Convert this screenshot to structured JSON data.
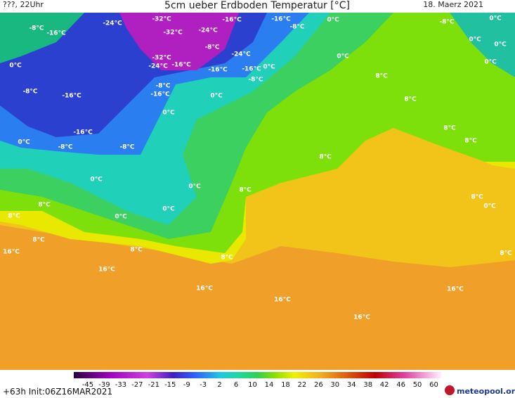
{
  "header": {
    "left": "???, 22Uhr",
    "title": "5cm ueber Erdboden Temperatur [°C]",
    "date": "18. Maerz 2021"
  },
  "labels": [
    "-8°C",
    "-16°C",
    "-24°C",
    "-32°C",
    "-32°C",
    "-24°C",
    "-16°C",
    "-16°C",
    "-8°C",
    "0°C",
    "0°C",
    "-8°C",
    "0°C",
    "0°C",
    "-8°C",
    "-24°C",
    "-32°C",
    "-24°C",
    "-16°C",
    "-16°C",
    "-16°C",
    "0°C",
    "-8°C",
    "0°C",
    "0°C",
    "0°C",
    "-8°C",
    "-16°C",
    "-8°C",
    "-16°C",
    "0°C",
    "8°C",
    "8°C",
    "0°C",
    "8°C",
    "-16°C",
    "0°C",
    "-8°C",
    "-8°C",
    "8°C",
    "8°C",
    "0°C",
    "0°C",
    "8°C",
    "8°C",
    "0°C",
    "8°C",
    "0°C",
    "8°C",
    "0°C",
    "8°C",
    "16°C",
    "8°C",
    "8°C",
    "8°C",
    "16°C",
    "16°C",
    "16°C",
    "16°C",
    "16°C"
  ],
  "colorbar": {
    "ticks": [
      -45,
      -39,
      -33,
      -27,
      -21,
      -15,
      -9,
      -3,
      2,
      6,
      10,
      14,
      18,
      22,
      26,
      30,
      34,
      38,
      42,
      46,
      50,
      60
    ]
  },
  "footer": {
    "run": "+63h Init:06Z16MAR2021",
    "logo": "meteopool.org"
  }
}
